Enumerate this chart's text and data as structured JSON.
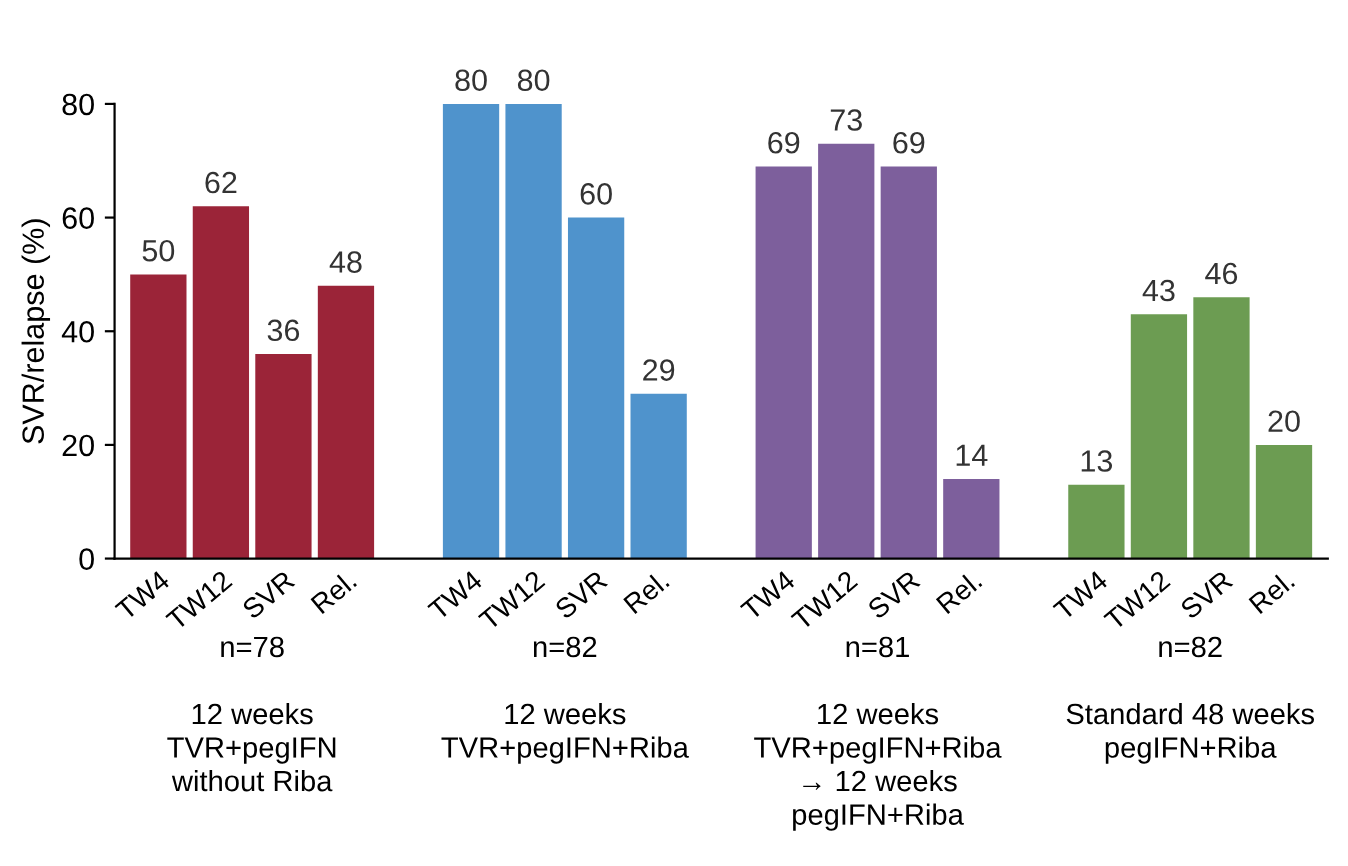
{
  "chart_data": {
    "type": "bar",
    "ylabel": "SVR/relapse (%)",
    "categories": [
      "TW4",
      "TW12",
      "SVR",
      "Rel.",
      null,
      "TW4",
      "TW12",
      "SVR",
      "Rel.",
      null,
      "TW4",
      "TW12",
      "SVR",
      "Rel.",
      null,
      "TW4",
      "TW12",
      "SVR",
      "Rel."
    ],
    "values": [
      50,
      62,
      36,
      48,
      null,
      80,
      80,
      60,
      29,
      null,
      69,
      73,
      69,
      14,
      null,
      13,
      43,
      46,
      20
    ],
    "colors": [
      "#9b2438",
      "#9b2438",
      "#9b2438",
      "#9b2438",
      "#ffffff",
      "#4f93cc",
      "#4f93cc",
      "#4f93cc",
      "#4f93cc",
      "#ffffff",
      "#7d5f9c",
      "#7d5f9c",
      "#7d5f9c",
      "#7d5f9c",
      "#ffffff",
      "#6c9c52",
      "#6c9c52",
      "#6c9c52",
      "#6c9c52"
    ],
    "ylim": [
      0,
      80
    ],
    "yticks": [
      0,
      20,
      40,
      60,
      80
    ],
    "grid": false,
    "data_labels": true,
    "annotations": [
      "n=78\n\n12 weeks\nTVR+pegIFN\nwithout Riba",
      "n=82\n\n12 weeks\nTVR+pegIFN+Riba",
      "n=81\n\n12 weeks\nTVR+pegIFN+Riba\n→ 12 weeks\npegIFN+Riba",
      "n=82\n\nStandard 48 weeks\npegIFN+Riba"
    ]
  }
}
